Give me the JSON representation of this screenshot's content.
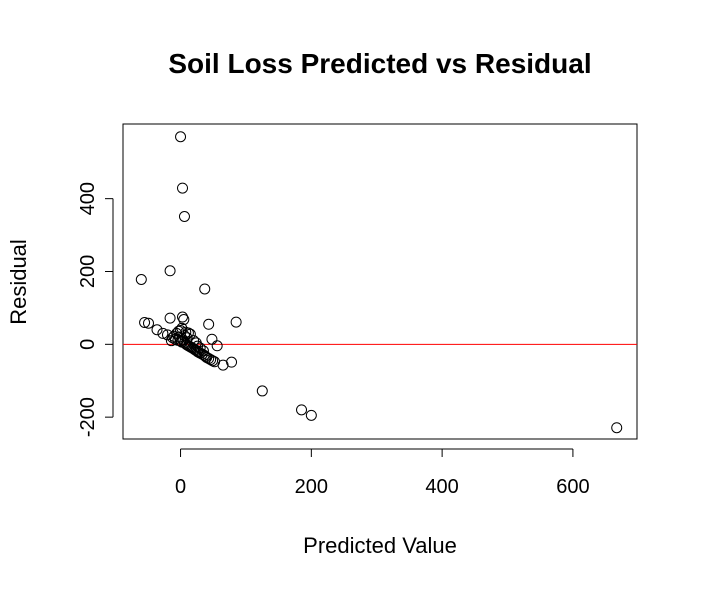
{
  "chart_data": {
    "type": "scatter",
    "title": "Soil Loss Predicted vs Residual",
    "xlabel": "Predicted Value",
    "ylabel": "Residual",
    "xlim": [
      -88,
      698
    ],
    "ylim": [
      -260,
      605
    ],
    "x_ticks": [
      0,
      200,
      400,
      600
    ],
    "y_ticks": [
      -200,
      0,
      200,
      400
    ],
    "reference_line": {
      "y": 0,
      "color": "#ff0000"
    },
    "grid": false,
    "marker": "open-circle",
    "series": [
      {
        "points": [
          {
            "x": 0,
            "y": 570
          },
          {
            "x": 3,
            "y": 429
          },
          {
            "x": 6,
            "y": 351
          },
          {
            "x": -60,
            "y": 178
          },
          {
            "x": -16,
            "y": 202
          },
          {
            "x": 37,
            "y": 152
          },
          {
            "x": 85,
            "y": 61
          },
          {
            "x": 43,
            "y": 55
          },
          {
            "x": -55,
            "y": 60
          },
          {
            "x": -49,
            "y": 58
          },
          {
            "x": -36,
            "y": 40
          },
          {
            "x": -27,
            "y": 30
          },
          {
            "x": -20,
            "y": 26
          },
          {
            "x": -16,
            "y": 72
          },
          {
            "x": 3,
            "y": 75
          },
          {
            "x": 5,
            "y": 68
          },
          {
            "x": 2,
            "y": 44
          },
          {
            "x": 0,
            "y": 38
          },
          {
            "x": -3,
            "y": 36
          },
          {
            "x": 8,
            "y": 33
          },
          {
            "x": 12,
            "y": 31
          },
          {
            "x": -6,
            "y": 30
          },
          {
            "x": 15,
            "y": 28
          },
          {
            "x": -10,
            "y": 22
          },
          {
            "x": -12,
            "y": 18
          },
          {
            "x": -8,
            "y": 14
          },
          {
            "x": -14,
            "y": 10
          },
          {
            "x": -4,
            "y": 11
          },
          {
            "x": 0,
            "y": 9
          },
          {
            "x": 2,
            "y": 6
          },
          {
            "x": 4,
            "y": 12
          },
          {
            "x": 6,
            "y": 4
          },
          {
            "x": 8,
            "y": 1
          },
          {
            "x": 10,
            "y": -2
          },
          {
            "x": 12,
            "y": -4
          },
          {
            "x": 14,
            "y": -6
          },
          {
            "x": 16,
            "y": -8
          },
          {
            "x": 18,
            "y": -10
          },
          {
            "x": 20,
            "y": -12
          },
          {
            "x": 22,
            "y": -15
          },
          {
            "x": 24,
            "y": -17
          },
          {
            "x": 26,
            "y": -20
          },
          {
            "x": 28,
            "y": -22
          },
          {
            "x": 30,
            "y": -24
          },
          {
            "x": 33,
            "y": -27
          },
          {
            "x": 36,
            "y": -30
          },
          {
            "x": 38,
            "y": -33
          },
          {
            "x": 40,
            "y": -36
          },
          {
            "x": 43,
            "y": -39
          },
          {
            "x": 46,
            "y": -42
          },
          {
            "x": 49,
            "y": -45
          },
          {
            "x": 52,
            "y": -48
          },
          {
            "x": 30,
            "y": -10
          },
          {
            "x": 26,
            "y": -5
          },
          {
            "x": 35,
            "y": -18
          },
          {
            "x": 48,
            "y": 14
          },
          {
            "x": 56,
            "y": -4
          },
          {
            "x": 20,
            "y": 10
          },
          {
            "x": 24,
            "y": 4
          },
          {
            "x": -2,
            "y": 20
          },
          {
            "x": 6,
            "y": 24
          },
          {
            "x": 10,
            "y": 18
          },
          {
            "x": 65,
            "y": -57
          },
          {
            "x": 78,
            "y": -49
          },
          {
            "x": 125,
            "y": -128
          },
          {
            "x": 185,
            "y": -180
          },
          {
            "x": 200,
            "y": -195
          },
          {
            "x": 667,
            "y": -229
          }
        ]
      }
    ]
  }
}
